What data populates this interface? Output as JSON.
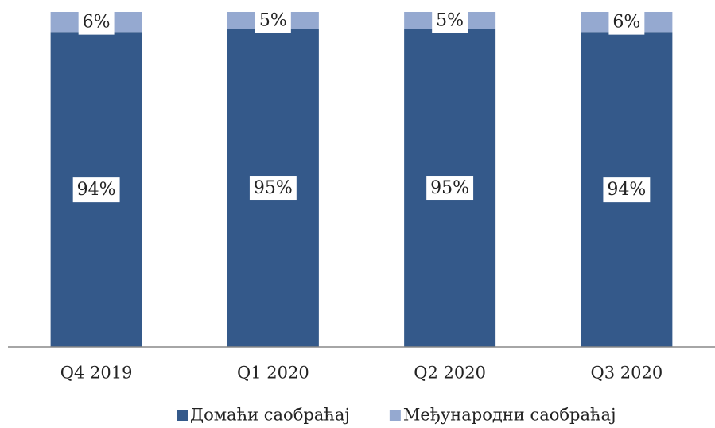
{
  "chart_data": {
    "type": "stacked_bar",
    "categories": [
      "Q4 2019",
      "Q1 2020",
      "Q2 2020",
      "Q3 2020"
    ],
    "series": [
      {
        "name": "Домаћи саобраћај",
        "color": "#34598a",
        "values": [
          94,
          95,
          95,
          94
        ],
        "value_labels": [
          "94%",
          "95%",
          "95%",
          "94%"
        ]
      },
      {
        "name": "Међународни саобраћај",
        "color": "#95a9d0",
        "values": [
          6,
          5,
          5,
          6
        ],
        "value_labels": [
          "6%",
          "5%",
          "5%",
          "6%"
        ]
      }
    ],
    "legend": "bottom"
  }
}
